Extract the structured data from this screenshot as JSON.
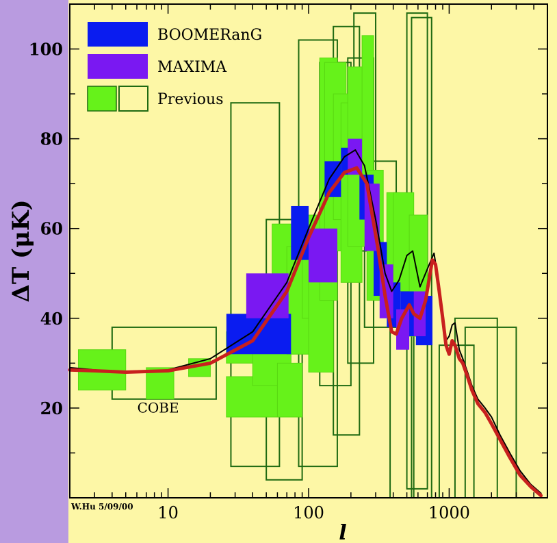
{
  "chart_data": {
    "type": "scatter",
    "title": "",
    "xlabel": "l",
    "ylabel": "ΔT (μK)",
    "xscale": "log",
    "xlim": [
      2,
      5000
    ],
    "ylim": [
      0,
      110
    ],
    "xticks": [
      10,
      100,
      1000
    ],
    "xtick_labels": [
      "10",
      "100",
      "1000"
    ],
    "yticks": [
      20,
      40,
      60,
      80,
      100
    ],
    "ytick_labels": [
      "20",
      "40",
      "60",
      "80",
      "100"
    ],
    "credit": "W.Hu 5/09/00",
    "annotations": [
      {
        "text": "COBE",
        "x": 8.5,
        "y": 19
      }
    ],
    "legend": {
      "placement": "top-left",
      "entries": [
        {
          "label": "BOOMERanG",
          "color": "#0a1cf0"
        },
        {
          "label": "MAXIMA",
          "color": "#7a18f2"
        },
        {
          "label": "Previous",
          "color": "#66f21a"
        }
      ]
    },
    "colors": {
      "background": "#fdf7a6",
      "boomerang": "#0a1cf0",
      "maxima": "#7a18f2",
      "previous_fill": "#66f21a",
      "previous_outline": "#1f6a12",
      "model_red": "#c8201e",
      "model_black": "#000000"
    },
    "series": [
      {
        "name": "Previous",
        "kind": "filled-boxes",
        "boxes": [
          {
            "x": [
              2.3,
              5.0
            ],
            "y": [
              24,
              33
            ]
          },
          {
            "x": [
              7.0,
              11.0
            ],
            "y": [
              22,
              29
            ]
          },
          {
            "x": [
              14,
              20
            ],
            "y": [
              27,
              31
            ]
          },
          {
            "x": [
              26,
              52
            ],
            "y": [
              30,
              37
            ]
          },
          {
            "x": [
              26,
              60
            ],
            "y": [
              18,
              27
            ]
          },
          {
            "x": [
              40,
              75
            ],
            "y": [
              25,
              35
            ]
          },
          {
            "x": [
              60,
              90
            ],
            "y": [
              18,
              30
            ]
          },
          {
            "x": [
              55,
              95
            ],
            "y": [
              38,
              61
            ]
          },
          {
            "x": [
              70,
              100
            ],
            "y": [
              32,
              56
            ]
          },
          {
            "x": [
              90,
              125
            ],
            "y": [
              40,
              63
            ]
          },
          {
            "x": [
              100,
              150
            ],
            "y": [
              28,
              53
            ]
          },
          {
            "x": [
              120,
              160
            ],
            "y": [
              44,
              98
            ]
          },
          {
            "x": [
              130,
              185
            ],
            "y": [
              55,
              97
            ]
          },
          {
            "x": [
              150,
              210
            ],
            "y": [
              62,
              90
            ]
          },
          {
            "x": [
              170,
              240
            ],
            "y": [
              48,
              88
            ]
          },
          {
            "x": [
              190,
              270
            ],
            "y": [
              56,
              96
            ]
          },
          {
            "x": [
              240,
              290
            ],
            "y": [
              65,
              103
            ]
          },
          {
            "x": [
              260,
              340
            ],
            "y": [
              44,
              73
            ]
          },
          {
            "x": [
              360,
              440
            ],
            "y": [
              50,
              68
            ]
          },
          {
            "x": [
              400,
              560
            ],
            "y": [
              46,
              68
            ]
          },
          {
            "x": [
              520,
              700
            ],
            "y": [
              36,
              63
            ]
          }
        ]
      },
      {
        "name": "Previous",
        "kind": "outline-boxes",
        "boxes": [
          {
            "x": [
              4,
              22
            ],
            "y": [
              22,
              38
            ]
          },
          {
            "x": [
              28,
              62
            ],
            "y": [
              7,
              88
            ]
          },
          {
            "x": [
              50,
              90
            ],
            "y": [
              4,
              62
            ]
          },
          {
            "x": [
              85,
              160
            ],
            "y": [
              7,
              102
            ]
          },
          {
            "x": [
              120,
              200
            ],
            "y": [
              25,
              97
            ]
          },
          {
            "x": [
              150,
              230
            ],
            "y": [
              14,
              105
            ]
          },
          {
            "x": [
              190,
              290
            ],
            "y": [
              30,
              98
            ]
          },
          {
            "x": [
              210,
              300
            ],
            "y": [
              55,
              108
            ]
          },
          {
            "x": [
              250,
              420
            ],
            "y": [
              38,
              75
            ]
          },
          {
            "x": [
              380,
              560
            ],
            "y": [
              0,
              54
            ]
          },
          {
            "x": [
              500,
              700
            ],
            "y": [
              2,
              108
            ]
          },
          {
            "x": [
              540,
              750
            ],
            "y": [
              0,
              107
            ]
          },
          {
            "x": [
              850,
              1500
            ],
            "y": [
              0,
              34
            ]
          },
          {
            "x": [
              1100,
              2200
            ],
            "y": [
              0,
              40
            ]
          },
          {
            "x": [
              1300,
              3000
            ],
            "y": [
              0,
              38
            ]
          }
        ]
      },
      {
        "name": "BOOMERanG",
        "kind": "filled-boxes",
        "boxes": [
          {
            "x": [
              26,
              75
            ],
            "y": [
              32,
              41
            ]
          },
          {
            "x": [
              75,
              100
            ],
            "y": [
              53,
              65
            ]
          },
          {
            "x": [
              130,
              170
            ],
            "y": [
              67,
              75
            ]
          },
          {
            "x": [
              170,
              230
            ],
            "y": [
              72,
              78
            ]
          },
          {
            "x": [
              230,
              290
            ],
            "y": [
              62,
              72
            ]
          },
          {
            "x": [
              290,
              360
            ],
            "y": [
              45,
              57
            ]
          },
          {
            "x": [
              360,
              450
            ],
            "y": [
              38,
              48
            ]
          },
          {
            "x": [
              450,
              580
            ],
            "y": [
              36,
              46
            ]
          },
          {
            "x": [
              580,
              760
            ],
            "y": [
              34,
              45
            ]
          }
        ]
      },
      {
        "name": "MAXIMA",
        "kind": "filled-boxes",
        "boxes": [
          {
            "x": [
              36,
              72
            ],
            "y": [
              40,
              50
            ]
          },
          {
            "x": [
              100,
              160
            ],
            "y": [
              48,
              60
            ]
          },
          {
            "x": [
              190,
              240
            ],
            "y": [
              72,
              80
            ]
          },
          {
            "x": [
              250,
              320
            ],
            "y": [
              55,
              70
            ]
          },
          {
            "x": [
              320,
              400
            ],
            "y": [
              40,
              52
            ]
          },
          {
            "x": [
              420,
              520
            ],
            "y": [
              33,
              42
            ]
          },
          {
            "x": [
              560,
              680
            ],
            "y": [
              36,
              46
            ]
          }
        ]
      },
      {
        "name": "model-black",
        "kind": "line",
        "x": [
          2,
          3,
          5,
          10,
          20,
          40,
          70,
          100,
          140,
          180,
          215,
          250,
          300,
          350,
          390,
          440,
          500,
          550,
          620,
          700,
          780,
          840,
          900,
          950,
          1000,
          1050,
          1100,
          1180,
          1250,
          1350,
          1450,
          1600,
          1800,
          2000,
          2300,
          2700,
          3200,
          3800,
          4500
        ],
        "y": [
          29,
          28.5,
          28,
          28.5,
          31,
          37,
          48,
          60,
          71,
          76,
          77.5,
          74,
          62,
          50,
          46,
          48.5,
          54,
          55,
          47,
          51,
          54.5,
          48,
          40,
          35,
          36,
          38.5,
          39,
          33,
          31,
          28,
          25,
          22,
          20,
          18,
          14,
          10,
          6,
          3,
          1
        ]
      },
      {
        "name": "model-red",
        "kind": "line",
        "x": [
          2,
          3,
          5,
          10,
          20,
          40,
          70,
          100,
          140,
          180,
          220,
          260,
          310,
          350,
          390,
          420,
          460,
          520,
          560,
          620,
          680,
          760,
          800,
          850,
          900,
          950,
          1000,
          1050,
          1100,
          1180,
          1250,
          1350,
          1450,
          1600,
          1800,
          2000,
          2300,
          2700,
          3200,
          3800,
          4500
        ],
        "y": [
          28.5,
          28.3,
          28,
          28.3,
          30,
          35,
          46,
          58,
          68,
          72.5,
          73.5,
          70,
          56,
          45,
          37,
          36.5,
          40,
          43,
          41,
          40,
          44,
          53,
          52,
          46,
          40,
          34,
          32,
          35,
          34,
          31,
          30,
          27,
          24,
          21,
          19,
          16.5,
          13,
          9,
          5,
          2.5,
          0.5
        ]
      }
    ]
  }
}
